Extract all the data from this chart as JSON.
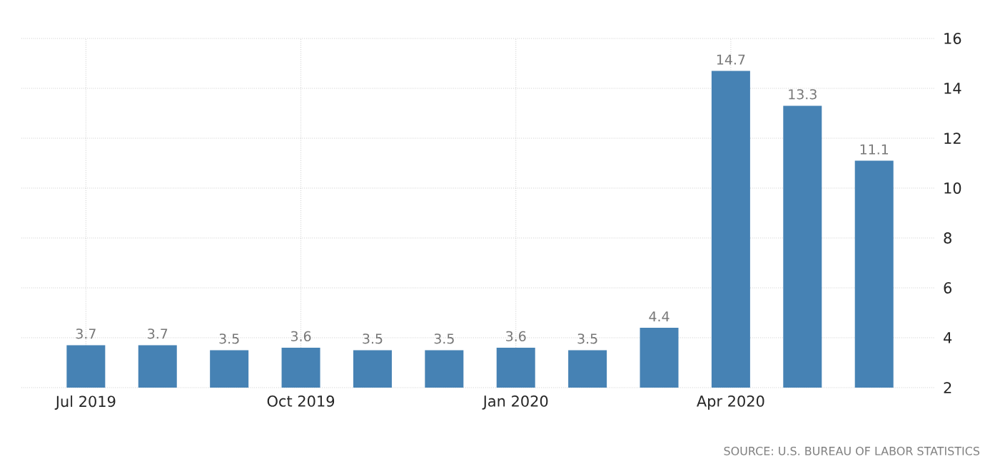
{
  "chart_data": {
    "type": "bar",
    "categories": [
      "Jul 2019",
      null,
      null,
      "Oct 2019",
      null,
      null,
      "Jan 2020",
      null,
      null,
      "Apr 2020",
      null,
      null
    ],
    "values": [
      3.7,
      3.7,
      3.5,
      3.6,
      3.5,
      3.5,
      3.6,
      3.5,
      4.4,
      14.7,
      13.3,
      11.1
    ],
    "color": "#4682b4",
    "ylim": [
      2,
      16
    ],
    "yticks": [
      2,
      4,
      6,
      8,
      10,
      12,
      14,
      16
    ],
    "grid": true,
    "data_labels": true,
    "annotations": [
      "SOURCE: U.S. BUREAU OF LABOR STATISTICS"
    ]
  }
}
